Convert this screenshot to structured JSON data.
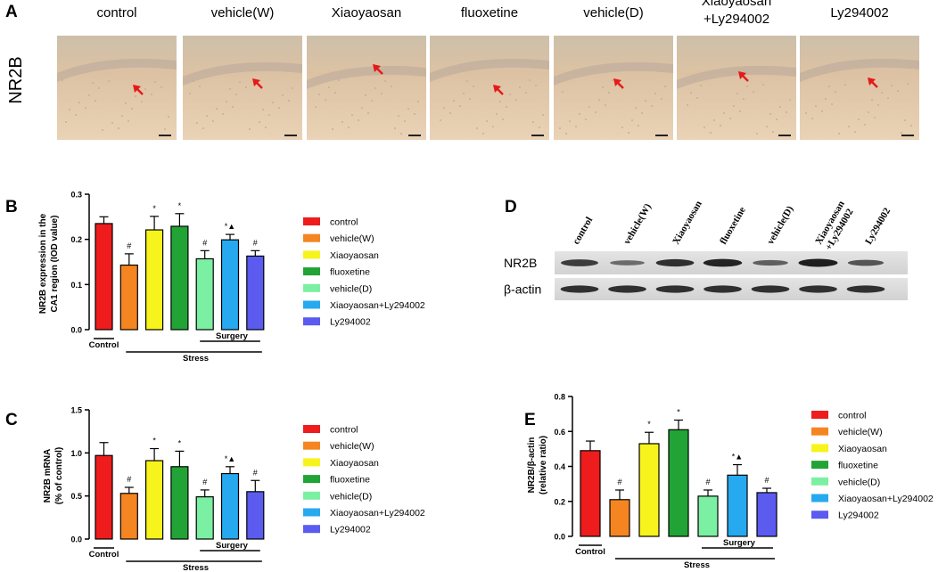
{
  "panel_a": {
    "label": "A",
    "row_label": "NR2B",
    "groups": [
      "control",
      "vehicle(W)",
      "Xiaoyaosan",
      "fluoxetine",
      "vehicle(D)",
      "Xiaoyaosan\n+Ly294002",
      "Ly294002"
    ]
  },
  "legend": {
    "items": [
      {
        "name": "control",
        "color": "#ee1c1c"
      },
      {
        "name": "vehicle(W)",
        "color": "#f58520"
      },
      {
        "name": "Xiaoyaosan",
        "color": "#f7f31c"
      },
      {
        "name": "fluoxetine",
        "color": "#22a336"
      },
      {
        "name": "vehicle(D)",
        "color": "#7cf0a2"
      },
      {
        "name": "Xiaoyaosan+Ly294002",
        "color": "#27a9f0"
      },
      {
        "name": "Ly294002",
        "color": "#5b5bf0"
      }
    ]
  },
  "groups_labels": {
    "control": "Control",
    "stress": "Stress",
    "surgery": "Surgery"
  },
  "panel_d": {
    "label": "D",
    "lanes": [
      "control",
      "vehicle(W)",
      "Xiaoyaosan",
      "fluoxetine",
      "vehicle(D)",
      "Xiaoyaosan\n+Ly294002",
      "Ly294002"
    ],
    "rows": [
      "NR2B",
      "β-actin"
    ],
    "nr2b_intensity": [
      0.75,
      0.35,
      0.85,
      0.95,
      0.45,
      1.0,
      0.55
    ],
    "actin_intensity": [
      0.85,
      0.85,
      0.85,
      0.85,
      0.85,
      0.85,
      0.85
    ]
  },
  "chart_data": [
    {
      "id": "B",
      "label": "B",
      "type": "bar",
      "ylabel": "NR2B expression in the\nCA1 region (IOD value)",
      "ylim": [
        0,
        0.3
      ],
      "yticks": [
        "0.0",
        "0.1",
        "0.2",
        "0.3"
      ],
      "categories": [
        "control",
        "vehicle(W)",
        "Xiaoyaosan",
        "fluoxetine",
        "vehicle(D)",
        "Xiaoyaosan+Ly294002",
        "Ly294002"
      ],
      "values": [
        0.235,
        0.143,
        0.221,
        0.229,
        0.157,
        0.199,
        0.163
      ],
      "errors": [
        0.015,
        0.025,
        0.03,
        0.028,
        0.018,
        0.012,
        0.012
      ],
      "annotations": [
        "",
        "#",
        "*",
        "*",
        "#",
        "*▲",
        "#"
      ]
    },
    {
      "id": "C",
      "label": "C",
      "type": "bar",
      "ylabel": "NR2B mRNA\n(% of control)",
      "ylim": [
        0,
        1.5
      ],
      "yticks": [
        "0.0",
        "0.5",
        "1.0",
        "1.5"
      ],
      "categories": [
        "control",
        "vehicle(W)",
        "Xiaoyaosan",
        "fluoxetine",
        "vehicle(D)",
        "Xiaoyaosan+Ly294002",
        "Ly294002"
      ],
      "values": [
        0.97,
        0.53,
        0.91,
        0.84,
        0.49,
        0.76,
        0.55
      ],
      "errors": [
        0.15,
        0.07,
        0.14,
        0.18,
        0.08,
        0.08,
        0.13
      ],
      "annotations": [
        "",
        "#",
        "*",
        "*",
        "#",
        "*▲",
        "#"
      ]
    },
    {
      "id": "E",
      "label": "E",
      "type": "bar",
      "ylabel": "NR2B/β-actin\n(relative ratio)",
      "ylim": [
        0,
        0.8
      ],
      "yticks": [
        "0.0",
        "0.2",
        "0.4",
        "0.6",
        "0.8"
      ],
      "categories": [
        "control",
        "vehicle(W)",
        "Xiaoyaosan",
        "fluoxetine",
        "vehicle(D)",
        "Xiaoyaosan+Ly294002",
        "Ly294002"
      ],
      "values": [
        0.49,
        0.21,
        0.53,
        0.61,
        0.23,
        0.35,
        0.25
      ],
      "errors": [
        0.055,
        0.055,
        0.065,
        0.055,
        0.035,
        0.06,
        0.025
      ],
      "annotations": [
        "",
        "#",
        "*",
        "*",
        "#",
        "*▲",
        "#"
      ]
    }
  ]
}
